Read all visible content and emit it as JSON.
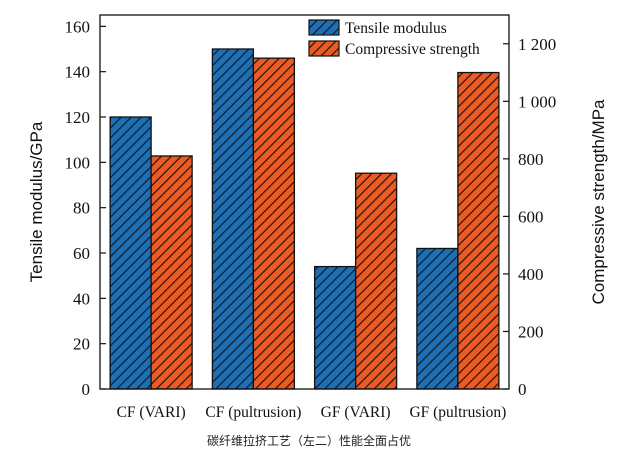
{
  "caption": "碳纤维拉挤工艺（左二）性能全面占优",
  "chart_data": {
    "type": "bar",
    "categories": [
      "CF (VARI)",
      "CF (pultrusion)",
      "GF (VARI)",
      "GF (pultrusion)"
    ],
    "series": [
      {
        "name": "Tensile modulus",
        "axis": "left",
        "values": [
          120,
          150,
          54,
          62
        ],
        "color": "#1f6fb4",
        "pattern": "hatch"
      },
      {
        "name": "Compressive strength",
        "axis": "right",
        "values": [
          810,
          1150,
          750,
          1100
        ],
        "color": "#ec5b24",
        "pattern": "hatch"
      }
    ],
    "ylabel": "Tensile modulus/GPa",
    "ylabel_right": "Compressive strength/MPa",
    "ylim": [
      0,
      165
    ],
    "ylim_right": [
      0,
      1300
    ],
    "yticks": [
      0,
      20,
      40,
      60,
      80,
      100,
      120,
      140,
      160
    ],
    "yticks_right": [
      0,
      200,
      400,
      600,
      800,
      1000,
      1200
    ],
    "yticks_right_labels": [
      "0",
      "200",
      "400",
      "600",
      "800",
      "1 000",
      "1 200"
    ],
    "legend_position": "top-center",
    "grid": false
  }
}
